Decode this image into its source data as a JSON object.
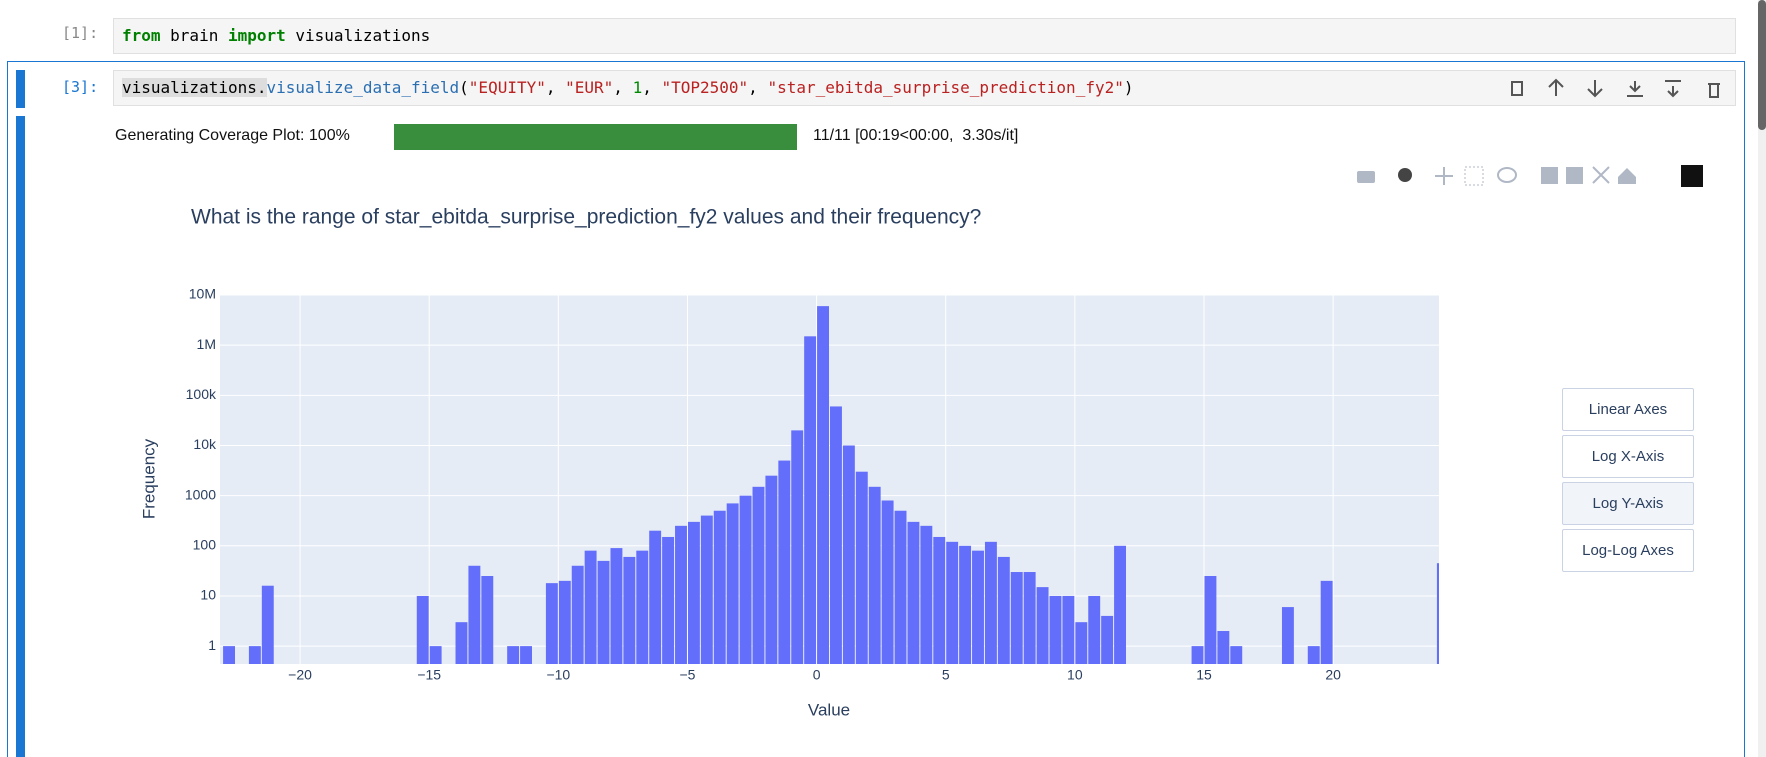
{
  "cells": [
    {
      "prompt": "[1]:",
      "code": [
        "from",
        " brain ",
        "import",
        " visualizations"
      ]
    },
    {
      "prompt": "[3]:",
      "code": [
        "visualizations.",
        "visualize_data_field",
        "(",
        "\"EQUITY\"",
        ", ",
        "\"EUR\"",
        ", ",
        "1",
        ", ",
        "\"TOP2500\"",
        ", ",
        "\"star_ebitda_surprise_prediction_fy2\"",
        ")"
      ]
    }
  ],
  "progress": {
    "label": "Generating Coverage Plot: 100%",
    "stats": "11/11 [00:19<00:00,  3.30s/it]"
  },
  "buttons": [
    "Linear Axes",
    "Log X-Axis",
    "Log Y-Axis",
    "Log-Log Axes"
  ],
  "chart_data": {
    "type": "histogram",
    "title": "What is the range of star_ebitda_surprise_prediction_fy2 values and their frequency?",
    "xlabel": "Value",
    "ylabel": "Frequency",
    "color": "#636efa",
    "grid": true,
    "log_y": true,
    "bins": [
      -23,
      -22.5,
      -22,
      -21.5,
      -21,
      -20.5,
      -20,
      -19.5,
      -19,
      -18.5,
      -18,
      -17.5,
      -17,
      -16.5,
      -16,
      -15.5,
      -15,
      -14.5,
      -14,
      -13.5,
      -13,
      -12.5,
      -12,
      -11.5,
      -11,
      -10.5,
      -10,
      -9.5,
      -9,
      -8.5,
      -8,
      -7.5,
      -7,
      -6.5,
      -6,
      -5.5,
      -5,
      -4.5,
      -4,
      -3.5,
      -3,
      -2.5,
      -2,
      -1.5,
      -1,
      -0.5,
      0,
      0.5,
      1,
      1.5,
      2,
      2.5,
      3,
      3.5,
      4,
      4.5,
      5,
      5.5,
      6,
      6.5,
      7,
      7.5,
      8,
      8.5,
      9,
      9.5,
      10,
      10.5,
      11,
      11.5,
      12,
      12.5,
      13,
      13.5,
      14,
      14.5,
      15,
      15.5,
      16,
      16.5,
      17,
      17.5,
      18,
      18.5,
      19,
      19.5,
      20,
      20.5,
      21,
      21.5,
      22,
      22.5,
      23,
      23.5,
      24,
      24.5
    ],
    "values": [
      1,
      0,
      1,
      16,
      0,
      0,
      0,
      0,
      0,
      0,
      0,
      0,
      0,
      0,
      0,
      10,
      1,
      0,
      3,
      40,
      25,
      0,
      1,
      1,
      0,
      18,
      20,
      40,
      80,
      50,
      90,
      60,
      80,
      200,
      150,
      250,
      300,
      400,
      500,
      700,
      1000,
      1500,
      2500,
      5000,
      20000,
      1500000,
      6000000,
      60000,
      10000,
      3000,
      1500,
      800,
      500,
      300,
      250,
      150,
      120,
      100,
      80,
      120,
      60,
      30,
      30,
      15,
      10,
      10,
      3,
      10,
      4,
      100,
      0,
      0,
      0,
      0,
      0,
      1,
      25,
      2,
      1,
      0,
      0,
      0,
      6,
      0,
      1,
      20,
      0,
      0,
      0,
      0,
      0,
      0,
      0,
      0,
      45
    ],
    "xlim": [
      -23.1,
      24.1
    ],
    "ylim": [
      0.44,
      10000000
    ],
    "xticks": [
      {
        "value": -20,
        "label": "−20"
      },
      {
        "value": -15,
        "label": "−15"
      },
      {
        "value": -10,
        "label": "−10"
      },
      {
        "value": -5,
        "label": "−5"
      },
      0,
      5,
      10,
      15,
      20
    ],
    "yticks": [
      1,
      10,
      100,
      1000,
      {
        "value": 10000,
        "label": "10k"
      },
      {
        "value": 100000,
        "label": "100k"
      },
      {
        "value": 1000000,
        "label": "1M"
      },
      {
        "value": 10000000,
        "label": "10M"
      }
    ]
  }
}
